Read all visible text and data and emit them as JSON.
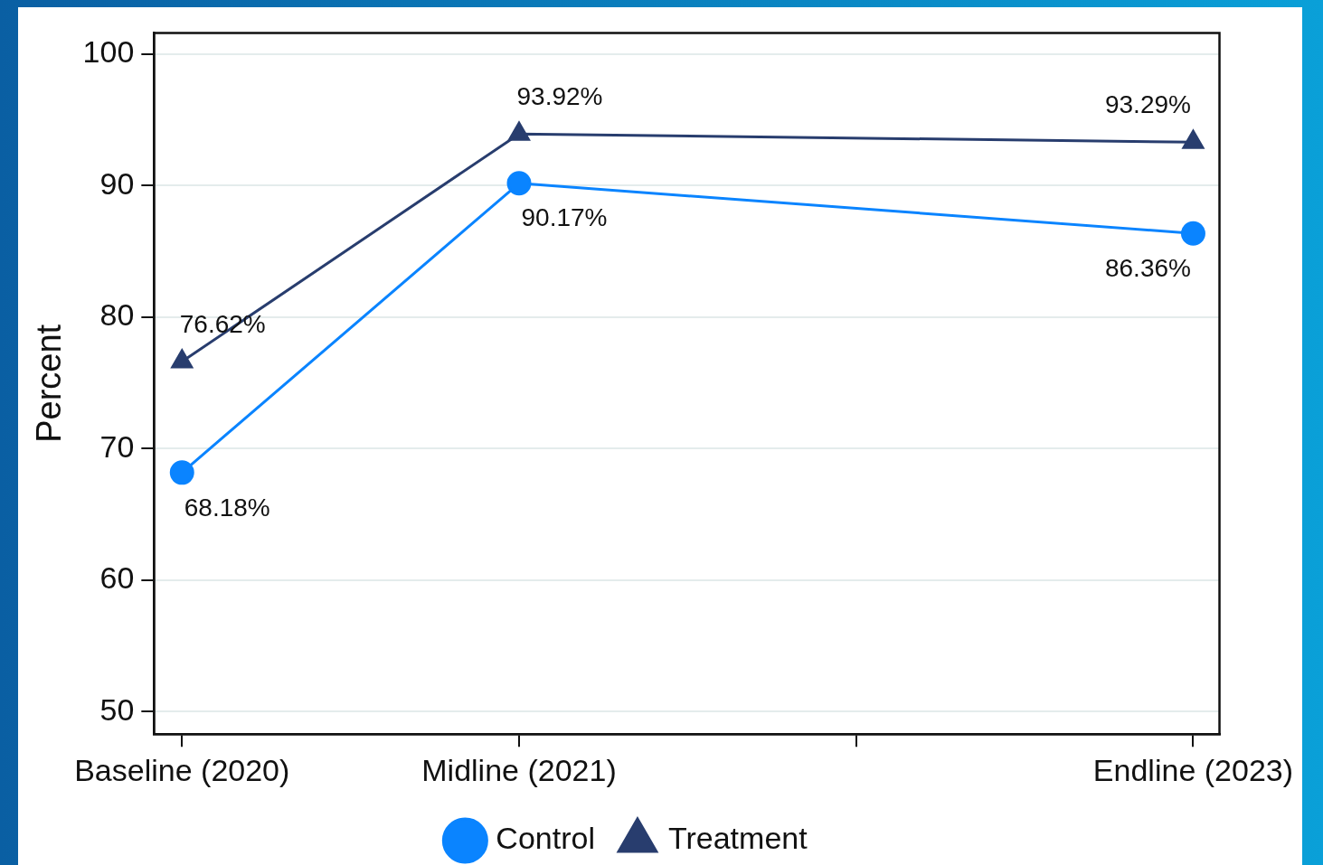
{
  "chart_data": {
    "type": "line",
    "ylabel": "Percent",
    "x": [
      2020,
      2021,
      2023
    ],
    "xlim": [
      2019.917,
      2023.078
    ],
    "xticks": [
      {
        "value": 2020,
        "label": "Baseline (2020)"
      },
      {
        "value": 2021,
        "label": "Midline (2021)"
      },
      {
        "value": 2022,
        "label": null
      },
      {
        "value": 2023,
        "label": "Endline (2023)"
      }
    ],
    "ylim": [
      48.3,
      101.6
    ],
    "yticks": [
      50,
      60,
      70,
      80,
      90,
      100
    ],
    "series": [
      {
        "name": "Control",
        "color": "#0a84ff",
        "marker": "circle",
        "values": [
          68.18,
          90.17,
          86.36
        ],
        "value_labels": [
          "68.18%",
          "90.17%",
          "86.36%"
        ]
      },
      {
        "name": "Treatment",
        "color": "#283d6e",
        "marker": "triangle",
        "values": [
          76.62,
          93.92,
          93.29
        ],
        "value_labels": [
          "76.62%",
          "93.92%",
          "93.29%"
        ]
      }
    ],
    "grid": "y",
    "legend": "bottom",
    "line_style": "solid"
  }
}
